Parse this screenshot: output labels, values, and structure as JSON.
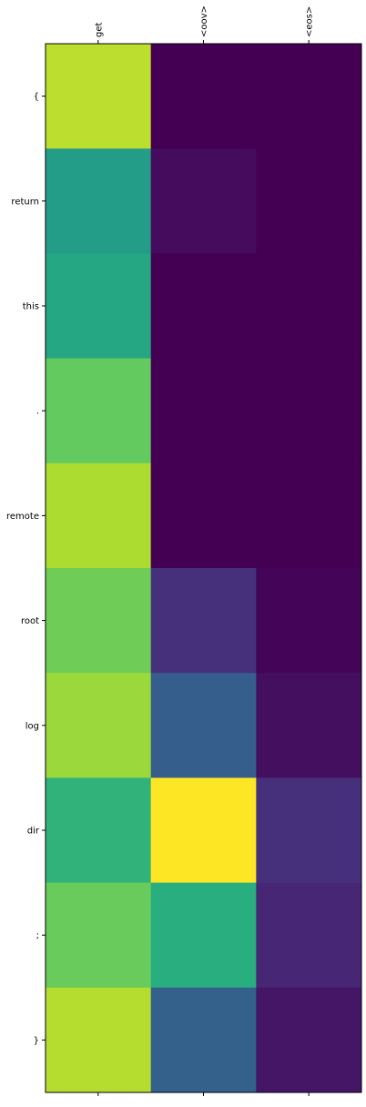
{
  "chart_data": {
    "type": "heatmap",
    "title": "",
    "xlabel": "",
    "ylabel": "",
    "x_categories": [
      "get",
      "<oov>",
      "<eos>"
    ],
    "y_categories": [
      "{",
      "return",
      "this",
      ".",
      "remote",
      "root",
      "log",
      "dir",
      ";",
      "}"
    ],
    "values": [
      [
        0.9,
        0.0,
        0.0
      ],
      [
        0.55,
        0.03,
        0.0
      ],
      [
        0.6,
        0.0,
        0.0
      ],
      [
        0.76,
        0.0,
        0.0
      ],
      [
        0.88,
        0.0,
        0.0
      ],
      [
        0.78,
        0.14,
        0.01
      ],
      [
        0.85,
        0.3,
        0.04
      ],
      [
        0.65,
        1.0,
        0.14
      ],
      [
        0.77,
        0.63,
        0.11
      ],
      [
        0.89,
        0.31,
        0.06
      ]
    ],
    "vmin": 0,
    "vmax": 1,
    "colormap": "viridis",
    "x_tick_position": "top",
    "x_tick_rotation": 90,
    "grid": false
  }
}
